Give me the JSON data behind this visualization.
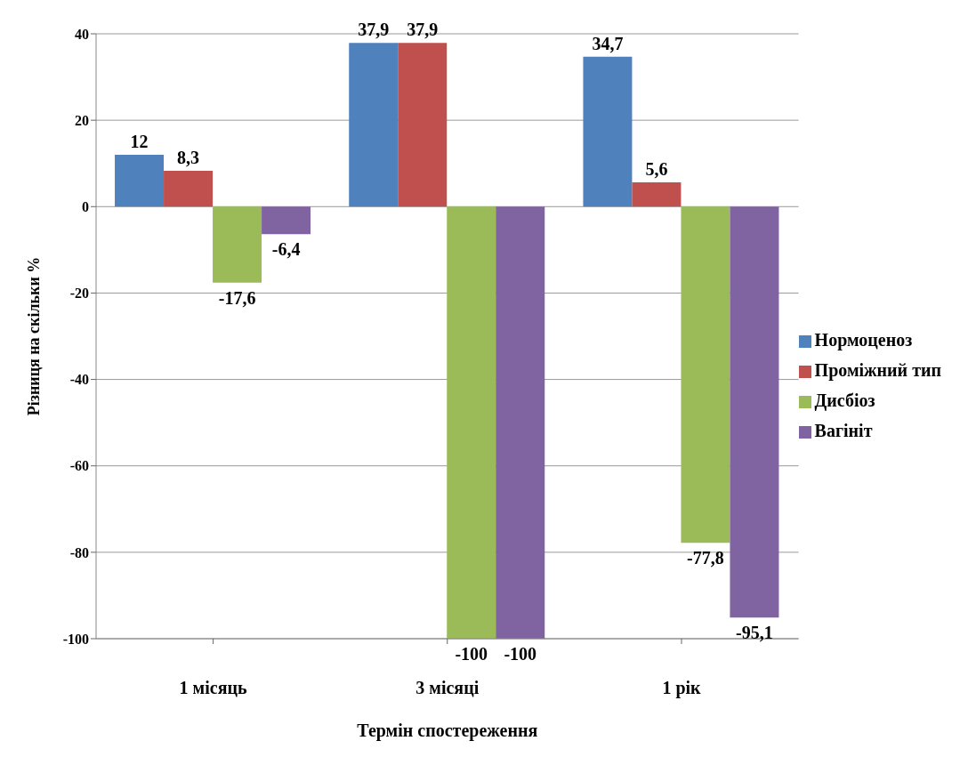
{
  "chart_data": {
    "type": "bar",
    "xlabel": "Термін спостереження",
    "ylabel": "Різниця на скільки %",
    "categories": [
      "1 місяць",
      "3 місяці",
      "1 рік"
    ],
    "series": [
      {
        "name": "Нормоценоз",
        "color": "#4f81bd",
        "values": [
          12,
          37.9,
          34.7
        ],
        "value_labels": [
          "12",
          "37,9",
          "34,7"
        ]
      },
      {
        "name": "Проміжний тип",
        "color": "#c0504d",
        "values": [
          8.3,
          37.9,
          5.6
        ],
        "value_labels": [
          "8,3",
          "37,9",
          "5,6"
        ]
      },
      {
        "name": "Дисбіоз",
        "color": "#9bbb59",
        "values": [
          -17.6,
          -100,
          -77.8
        ],
        "value_labels": [
          "-17,6",
          "-100",
          "-77,8"
        ]
      },
      {
        "name": "Вагініт",
        "color": "#8064a2",
        "values": [
          -6.4,
          -100,
          -95.1
        ],
        "value_labels": [
          "-6,4",
          "-100",
          "-95,1"
        ]
      }
    ],
    "ylim": [
      -100,
      40
    ],
    "yticks": [
      -100,
      -80,
      -60,
      -40,
      -20,
      0,
      20,
      40
    ],
    "grid": "y",
    "legend": "right"
  }
}
